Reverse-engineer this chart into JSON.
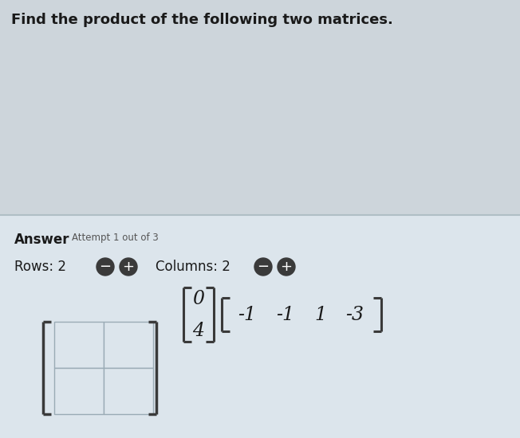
{
  "title": "Find the product of the following two matrices.",
  "title_fontsize": 13,
  "title_color": "#1a1a1a",
  "bg_top_color": "#cdd5db",
  "bg_bottom_color": "#dce5ec",
  "separator_color": "#b0bec5",
  "matrix1": [
    "0",
    "4"
  ],
  "matrix2": [
    "-1",
    "-1",
    "1",
    "-3"
  ],
  "answer_label": "Answer",
  "attempt_label": "Attempt 1 out of 3",
  "rows_label": "Rows: 2",
  "cols_label": "Columns: 2",
  "grid_rows": 2,
  "grid_cols": 2,
  "text_color": "#1a1a1a",
  "grid_cell_color": "#dce5ec",
  "grid_line_color": "#9aabb5",
  "bracket_color": "#3a3a3a",
  "btn_minus_color": "#3a3a3a",
  "btn_plus_color": "#3a3a3a",
  "btn_text_color": "#ffffff"
}
